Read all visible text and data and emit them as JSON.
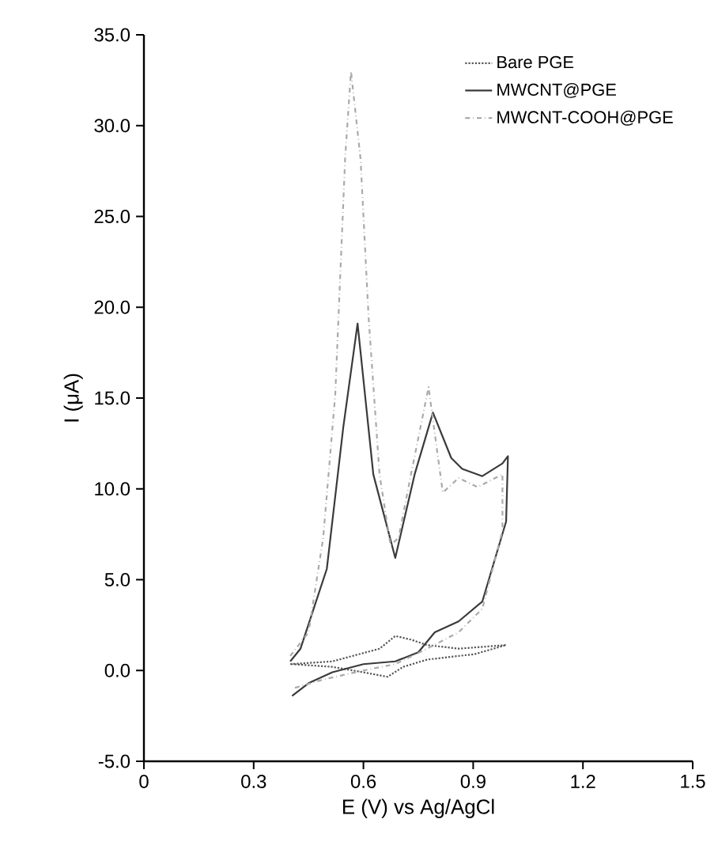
{
  "chart_data": {
    "type": "line",
    "xlabel": "E (V) vs Ag/AgCl",
    "ylabel": "I (μA)",
    "xlim": [
      0,
      1.5
    ],
    "xticks": [
      0,
      0.3,
      0.6,
      0.9,
      1.2,
      1.5
    ],
    "ylim": [
      -5,
      35
    ],
    "yticks": [
      {
        "value": -5,
        "label": "-5.0"
      },
      {
        "value": 0,
        "label": "0.0"
      },
      {
        "value": 5,
        "label": "5.0"
      },
      {
        "value": 10,
        "label": "10.0"
      },
      {
        "value": 15,
        "label": "15.0"
      },
      {
        "value": 20,
        "label": "20.0"
      },
      {
        "value": 25,
        "label": "25.0"
      },
      {
        "value": 30,
        "label": "30.0"
      },
      {
        "value": 35,
        "label": "35.0"
      }
    ],
    "grid": false,
    "legend": "top right",
    "marker": "none",
    "series": [
      {
        "name": "Bare PGE",
        "color": "#555555",
        "line_style": "dotted",
        "x": [
          0.4,
          0.515,
          0.644,
          0.687,
          0.73,
          0.774,
          0.86,
          0.99,
          0.904,
          0.774,
          0.709,
          0.666,
          0.6,
          0.515,
          0.405
        ],
        "values": [
          0.35,
          0.5,
          1.2,
          1.9,
          1.7,
          1.4,
          1.2,
          1.4,
          0.9,
          0.6,
          0.2,
          -0.35,
          -0.1,
          0.2,
          0.35
        ]
      },
      {
        "name": "MWCNT@PGE",
        "color": "#3a3a3a",
        "line_style": "solid",
        "x": [
          0.4,
          0.428,
          0.5,
          0.545,
          0.584,
          0.627,
          0.687,
          0.74,
          0.79,
          0.84,
          0.87,
          0.925,
          0.98,
          0.995,
          0.99,
          0.925,
          0.86,
          0.795,
          0.75,
          0.687,
          0.6,
          0.515,
          0.45,
          0.405
        ],
        "values": [
          0.5,
          1.2,
          5.6,
          13.4,
          19.1,
          10.8,
          6.2,
          10.8,
          14.2,
          11.7,
          11.1,
          10.7,
          11.4,
          11.8,
          8.2,
          3.8,
          2.7,
          2.1,
          1.0,
          0.5,
          0.35,
          -0.1,
          -0.7,
          -1.4
        ]
      },
      {
        "name": "MWCNT-COOH@PGE",
        "color": "#aaaaaa",
        "line_style": "dashed",
        "x": [
          0.4,
          0.45,
          0.49,
          0.523,
          0.55,
          0.566,
          0.592,
          0.614,
          0.644,
          0.674,
          0.696,
          0.73,
          0.778,
          0.804,
          0.817,
          0.86,
          0.912,
          0.98,
          0.98,
          0.925,
          0.86,
          0.774,
          0.687,
          0.6,
          0.49,
          0.405
        ],
        "values": [
          0.8,
          2.1,
          7.3,
          15.2,
          28.2,
          33.0,
          28.2,
          19.5,
          10.8,
          6.9,
          7.3,
          10.8,
          15.6,
          11.7,
          9.8,
          10.6,
          10.1,
          10.8,
          7.7,
          3.4,
          2.1,
          1.2,
          0.35,
          0.0,
          -0.5,
          -1.0
        ]
      }
    ]
  }
}
